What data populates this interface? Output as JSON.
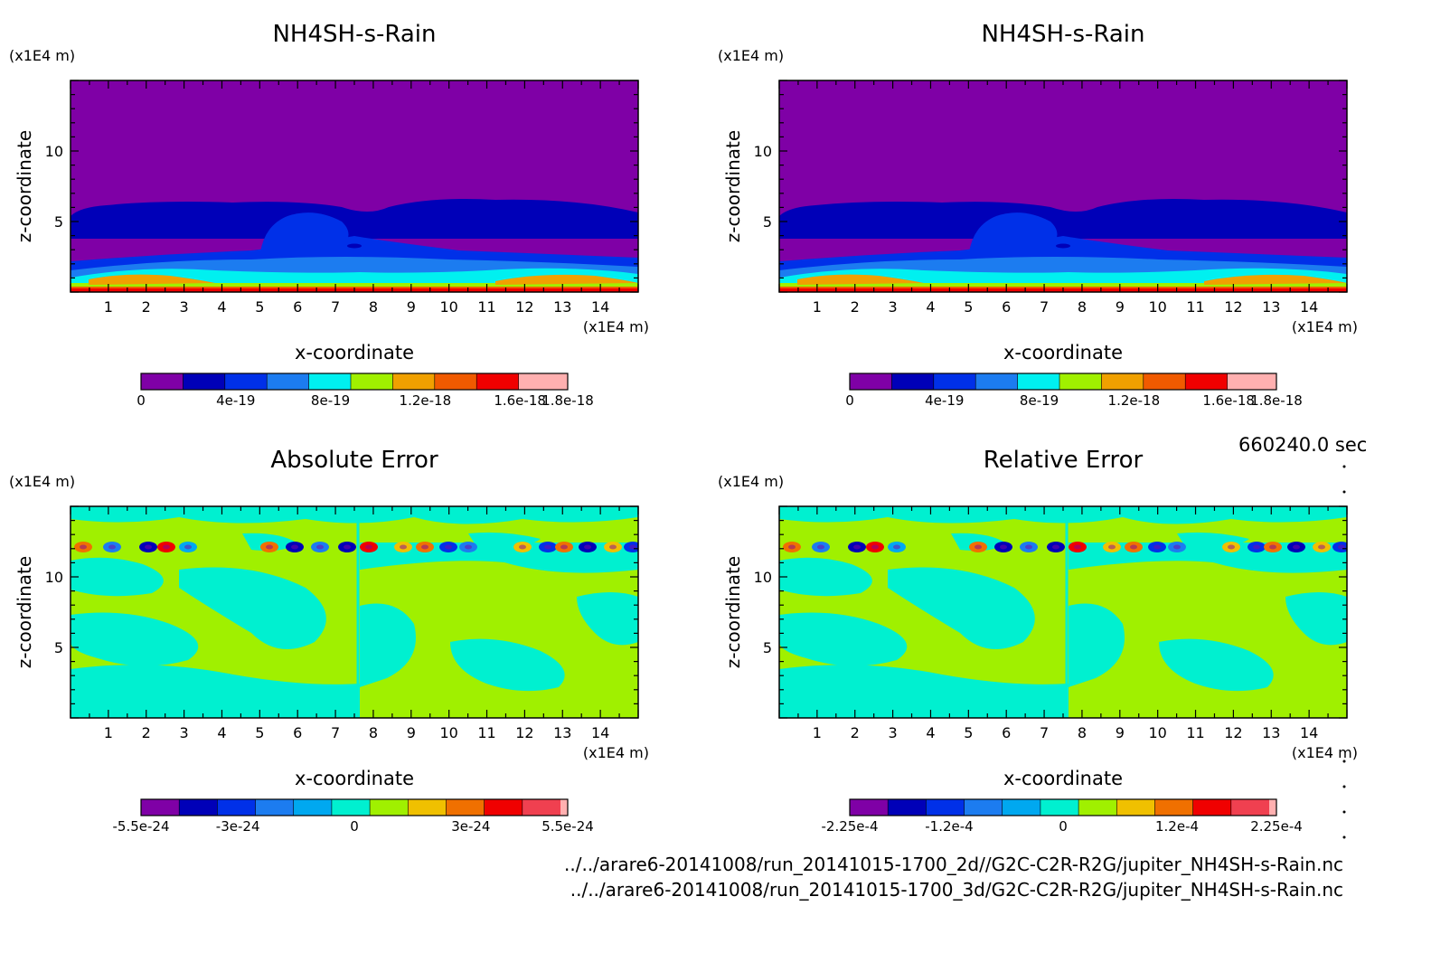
{
  "time_label": "660240.0 sec",
  "footer": {
    "line1": "../../arare6-20141008/run_20141015-1700_2d//G2C-C2R-R2G/jupiter_NH4SH-s-Rain.nc",
    "line2": "../../arare6-20141008/run_20141015-1700_3d/G2C-C2R-R2G/jupiter_NH4SH-s-Rain.nc"
  },
  "chart_data": [
    {
      "id": "top-left",
      "type": "heatmap",
      "title": "NH4SH-s-Rain",
      "xlabel": "x-coordinate",
      "ylabel": "z-coordinate",
      "x_unit": "(x1E4 m)",
      "y_unit": "(x1E4 m)",
      "xlim": [
        0,
        15
      ],
      "ylim": [
        0,
        15
      ],
      "x_ticks": [
        1,
        2,
        3,
        4,
        5,
        6,
        7,
        8,
        9,
        10,
        11,
        12,
        13,
        14
      ],
      "y_ticks": [
        5,
        10
      ],
      "colorbar": {
        "levels": 10,
        "colors": [
          "#7f00a6",
          "#0000b8",
          "#0030e8",
          "#1c7cf0",
          "#00f0f0",
          "#a0f000",
          "#f0a000",
          "#f05a00",
          "#f00000",
          "#ffb0b0"
        ],
        "tick_labels": [
          "0",
          "4e-19",
          "8e-19",
          "1.2e-18",
          "1.6e-18",
          "1.8e-18"
        ],
        "tick_fracs": [
          0,
          0.222,
          0.444,
          0.666,
          0.888,
          1.0
        ]
      }
    },
    {
      "id": "top-right",
      "type": "heatmap",
      "title": "NH4SH-s-Rain",
      "xlabel": "x-coordinate",
      "ylabel": "z-coordinate",
      "x_unit": "(x1E4 m)",
      "y_unit": "(x1E4 m)",
      "xlim": [
        0,
        15
      ],
      "ylim": [
        0,
        15
      ],
      "x_ticks": [
        1,
        2,
        3,
        4,
        5,
        6,
        7,
        8,
        9,
        10,
        11,
        12,
        13,
        14
      ],
      "y_ticks": [
        5,
        10
      ],
      "colorbar": {
        "levels": 10,
        "colors": [
          "#7f00a6",
          "#0000b8",
          "#0030e8",
          "#1c7cf0",
          "#00f0f0",
          "#a0f000",
          "#f0a000",
          "#f05a00",
          "#f00000",
          "#ffb0b0"
        ],
        "tick_labels": [
          "0",
          "4e-19",
          "8e-19",
          "1.2e-18",
          "1.6e-18",
          "1.8e-18"
        ],
        "tick_fracs": [
          0,
          0.222,
          0.444,
          0.666,
          0.888,
          1.0
        ]
      }
    },
    {
      "id": "bottom-left",
      "type": "heatmap",
      "title": "Absolute Error",
      "xlabel": "x-coordinate",
      "ylabel": "z-coordinate",
      "x_unit": "(x1E4 m)",
      "y_unit": "(x1E4 m)",
      "xlim": [
        0,
        15
      ],
      "ylim": [
        0,
        15
      ],
      "x_ticks": [
        1,
        2,
        3,
        4,
        5,
        6,
        7,
        8,
        9,
        10,
        11,
        12,
        13,
        14
      ],
      "y_ticks": [
        5,
        10
      ],
      "colorbar": {
        "levels": 11,
        "colors": [
          "#7f00a6",
          "#0000b8",
          "#0030e8",
          "#1c7cf0",
          "#00a8f0",
          "#00f0d0",
          "#a0f000",
          "#f0c000",
          "#f07000",
          "#f00000",
          "#f04050",
          "#ffb0b0"
        ],
        "tick_labels": [
          "-5.5e-24",
          "-3e-24",
          "0",
          "3e-24",
          "5.5e-24"
        ],
        "tick_fracs": [
          0,
          0.227,
          0.5,
          0.773,
          1.0
        ]
      }
    },
    {
      "id": "bottom-right",
      "type": "heatmap",
      "title": "Relative Error",
      "xlabel": "x-coordinate",
      "ylabel": "z-coordinate",
      "x_unit": "(x1E4 m)",
      "y_unit": "(x1E4 m)",
      "xlim": [
        0,
        15
      ],
      "ylim": [
        0,
        15
      ],
      "x_ticks": [
        1,
        2,
        3,
        4,
        5,
        6,
        7,
        8,
        9,
        10,
        11,
        12,
        13,
        14
      ],
      "y_ticks": [
        5,
        10
      ],
      "colorbar": {
        "levels": 11,
        "colors": [
          "#7f00a6",
          "#0000b8",
          "#0030e8",
          "#1c7cf0",
          "#00a8f0",
          "#00f0d0",
          "#a0f000",
          "#f0c000",
          "#f07000",
          "#f00000",
          "#f04050",
          "#ffb0b0"
        ],
        "tick_labels": [
          "-2.25e-4",
          "-1.2e-4",
          "0",
          "1.2e-4",
          "2.25e-4"
        ],
        "tick_fracs": [
          0,
          0.233,
          0.5,
          0.767,
          1.0
        ]
      }
    }
  ]
}
